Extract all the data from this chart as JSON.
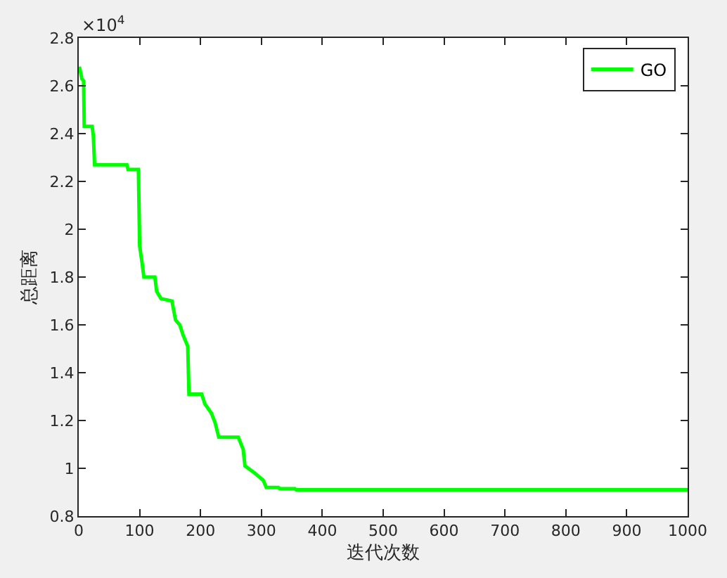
{
  "chart_data": {
    "type": "line",
    "xlabel": "迭代次数",
    "ylabel": "总距离",
    "annotations": [
      "×10$^{4}$"
    ],
    "series": [
      {
        "name": "GO",
        "color": "#00ff00",
        "x": [
          1,
          5,
          8,
          9,
          22,
          24,
          26,
          79,
          81,
          98,
          100,
          104,
          107,
          125,
          128,
          135,
          153,
          159,
          166,
          171,
          179,
          181,
          202,
          207,
          218,
          224,
          230,
          262,
          270,
          273,
          289,
          303,
          308,
          328,
          330,
          355,
          357,
          1000
        ],
        "values": [
          2.68,
          2.63,
          2.62,
          2.43,
          2.43,
          2.39,
          2.27,
          2.27,
          2.25,
          2.25,
          1.93,
          1.86,
          1.8,
          1.8,
          1.74,
          1.71,
          1.7,
          1.62,
          1.6,
          1.56,
          1.51,
          1.31,
          1.31,
          1.27,
          1.23,
          1.19,
          1.13,
          1.13,
          1.08,
          1.01,
          0.98,
          0.95,
          0.92,
          0.92,
          0.915,
          0.915,
          0.91,
          0.91
        ]
      }
    ],
    "xlim": [
      0,
      1000
    ],
    "xticks": [
      0,
      100,
      200,
      300,
      400,
      500,
      600,
      700,
      800,
      900,
      1000
    ],
    "ylim": [
      0.8,
      2.8
    ],
    "yticks": [
      0.8,
      1,
      1.2,
      1.4,
      1.6,
      1.8,
      2,
      2.2,
      2.4,
      2.6,
      2.8
    ],
    "legend": "top right",
    "line_style": "solid"
  }
}
